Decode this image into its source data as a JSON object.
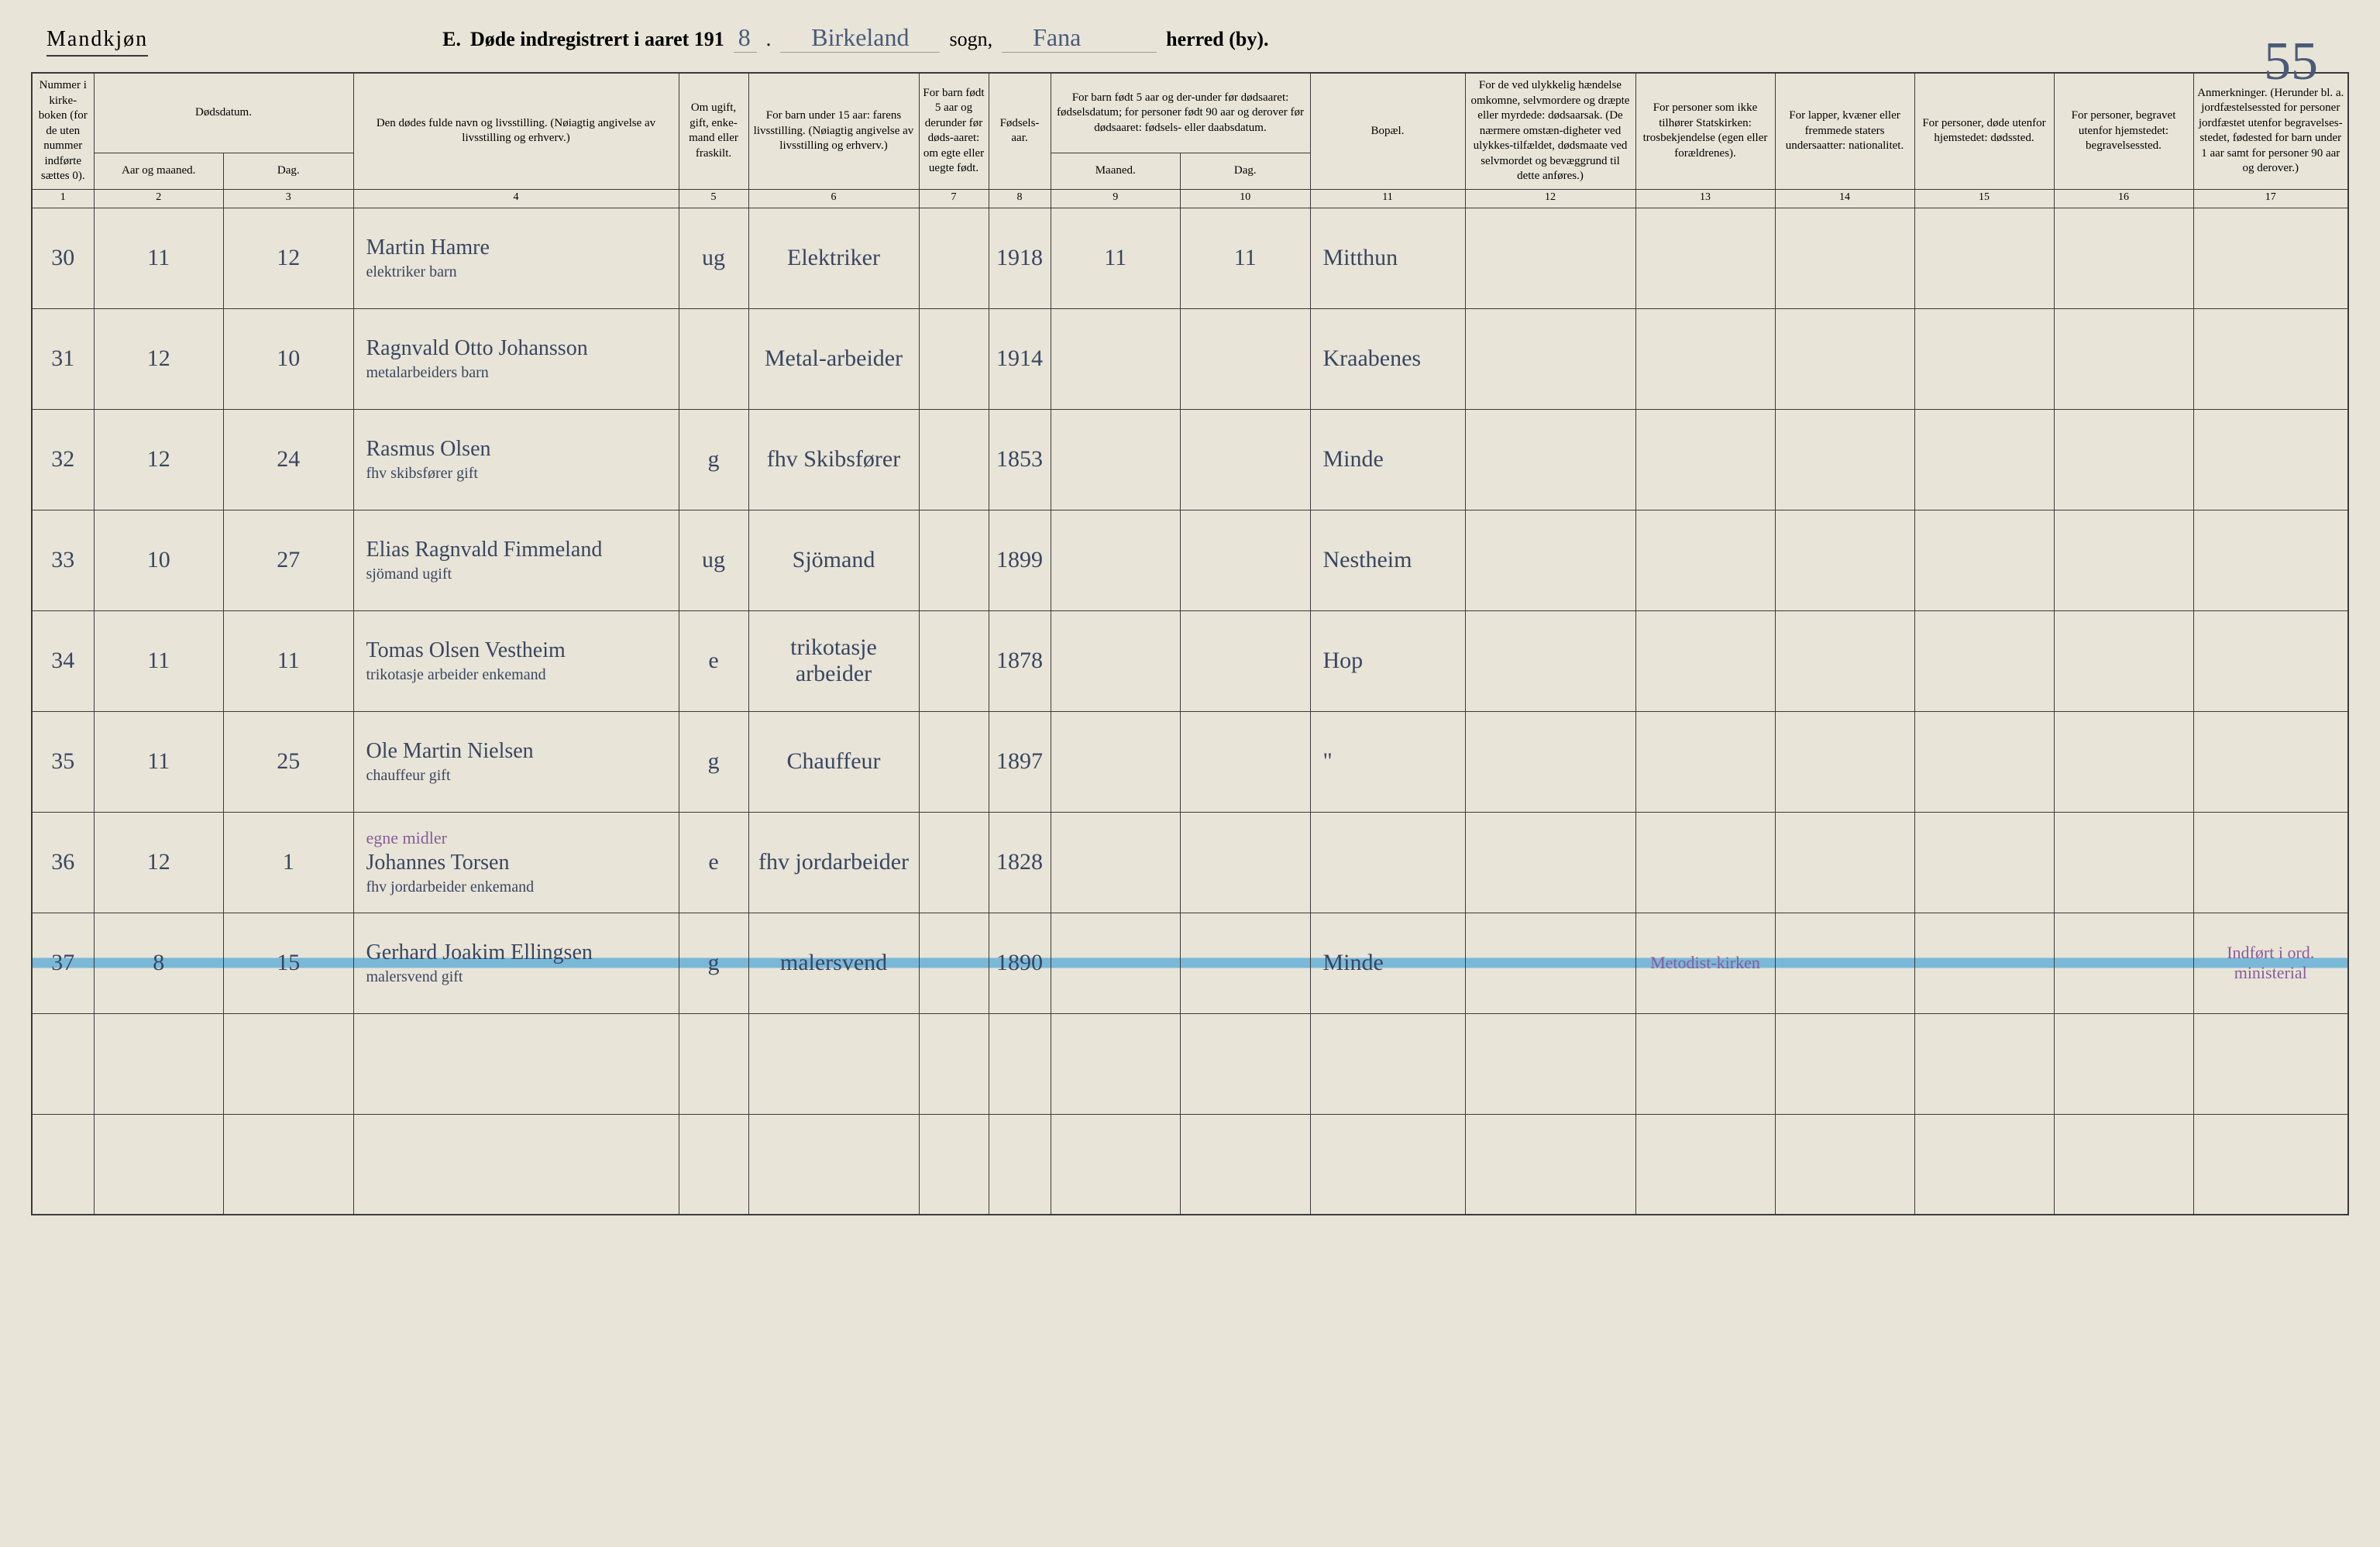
{
  "header": {
    "gender": "Mandkjøn",
    "title_prefix": "E.",
    "title_main": "Døde indregistrert i aaret 191",
    "year_suffix": "8",
    "sogn_value": "Birkeland",
    "sogn_label": "sogn,",
    "herred_value": "Fana",
    "herred_label": "herred (by).",
    "page_number": "55"
  },
  "columns": {
    "c1": "Nummer i kirke-boken (for de uten nummer indførte sættes 0).",
    "c2_3": "Dødsdatum.",
    "c2": "Aar og maaned.",
    "c3": "Dag.",
    "c4": "Den dødes fulde navn og livsstilling. (Nøiagtig angivelse av livsstilling og erhverv.)",
    "c5": "Om ugift, gift, enke-mand eller fraskilt.",
    "c6": "For barn under 15 aar: farens livsstilling. (Nøiagtig angivelse av livsstilling og erhverv.)",
    "c7": "For barn født 5 aar og derunder før døds-aaret: om egte eller uegte født.",
    "c8": "Fødsels-aar.",
    "c9_10": "For barn født 5 aar og der-under før dødsaaret: fødselsdatum; for personer født 90 aar og derover før dødsaaret: fødsels- eller daabsdatum.",
    "c9": "Maaned.",
    "c10": "Dag.",
    "c11": "Bopæl.",
    "c12": "For de ved ulykkelig hændelse omkomne, selvmordere og dræpte eller myrdede: dødsaarsak. (De nærmere omstæn-digheter ved ulykkes-tilfældet, dødsmaate ved selvmordet og bevæggrund til dette anføres.)",
    "c13": "For personer som ikke tilhører Statskirken: trosbekjendelse (egen eller forældrenes).",
    "c14": "For lapper, kvæner eller fremmede staters undersaatter: nationalitet.",
    "c15": "For personer, døde utenfor hjemstedet: dødssted.",
    "c16": "For personer, begravet utenfor hjemstedet: begravelsessted.",
    "c17": "Anmerkninger. (Herunder bl. a. jordfæstelsessted for personer jordfæstet utenfor begravelses-stedet, fødested for barn under 1 aar samt for personer 90 aar og derover.)"
  },
  "colnums": [
    "1",
    "2",
    "3",
    "4",
    "5",
    "6",
    "7",
    "8",
    "9",
    "10",
    "11",
    "12",
    "13",
    "14",
    "15",
    "16",
    "17"
  ],
  "rows": [
    {
      "num": "30",
      "mnd": "11",
      "dag": "12",
      "name": "Martin Hamre",
      "name_sub": "elektriker barn",
      "status": "ug",
      "faren": "Elektriker",
      "egte": "",
      "faar": "1918",
      "fmnd": "11",
      "fdag": "11",
      "bopael": "Mitthun",
      "c12": "",
      "c13": "",
      "c14": "",
      "c15": "",
      "c16": "",
      "c17": "",
      "blue_mark": true
    },
    {
      "num": "31",
      "mnd": "12",
      "dag": "10",
      "name": "Ragnvald Otto Johansson",
      "name_sub": "metalarbeiders barn",
      "status": "",
      "faren": "Metal-arbeider",
      "egte": "",
      "faar": "1914",
      "fmnd": "",
      "fdag": "",
      "bopael": "Kraabenes",
      "c12": "",
      "c13": "",
      "c14": "",
      "c15": "",
      "c16": "",
      "c17": ""
    },
    {
      "num": "32",
      "mnd": "12",
      "dag": "24",
      "name": "Rasmus Olsen",
      "name_sub": "fhv skibsfører gift",
      "status": "g",
      "faren": "fhv Skibsfører",
      "egte": "",
      "faar": "1853",
      "fmnd": "",
      "fdag": "",
      "bopael": "Minde",
      "c12": "",
      "c13": "",
      "c14": "",
      "c15": "",
      "c16": "",
      "c17": ""
    },
    {
      "num": "33",
      "mnd": "10",
      "dag": "27",
      "name": "Elias Ragnvald Fimmeland",
      "name_sub": "sjömand ugift",
      "status": "ug",
      "faren": "Sjömand",
      "egte": "",
      "faar": "1899",
      "fmnd": "",
      "fdag": "",
      "bopael": "Nestheim",
      "c12": "",
      "c13": "",
      "c14": "",
      "c15": "",
      "c16": "",
      "c17": ""
    },
    {
      "num": "34",
      "mnd": "11",
      "dag": "11",
      "name": "Tomas Olsen Vestheim",
      "name_sub": "trikotasje arbeider enkemand",
      "status": "e",
      "faren": "trikotasje arbeider",
      "egte": "",
      "faar": "1878",
      "fmnd": "",
      "fdag": "",
      "bopael": "Hop",
      "c12": "",
      "c13": "",
      "c14": "",
      "c15": "",
      "c16": "",
      "c17": ""
    },
    {
      "num": "35",
      "mnd": "11",
      "dag": "25",
      "name": "Ole Martin Nielsen",
      "name_sub": "chauffeur gift",
      "status": "g",
      "faren": "Chauffeur",
      "egte": "",
      "faar": "1897",
      "fmnd": "",
      "fdag": "",
      "bopael": "\"",
      "c12": "",
      "c13": "",
      "c14": "",
      "c15": "",
      "c16": "",
      "c17": ""
    },
    {
      "num": "36",
      "mnd": "12",
      "dag": "1",
      "name": "Johannes Torsen",
      "name_sub": "fhv jordarbeider enkemand",
      "purple": "egne midler",
      "status": "e",
      "faren": "fhv jordarbeider",
      "egte": "",
      "faar": "1828",
      "fmnd": "",
      "fdag": "",
      "bopael": "",
      "c12": "",
      "c13": "",
      "c14": "",
      "c15": "",
      "c16": "",
      "c17": ""
    },
    {
      "num": "37",
      "mnd": "8",
      "dag": "15",
      "name": "Gerhard Joakim Ellingsen",
      "name_sub": "malersvend gift",
      "status": "g",
      "faren": "malersvend",
      "egte": "",
      "faar": "1890",
      "fmnd": "",
      "fdag": "",
      "bopael": "Minde",
      "c12": "",
      "c13": "Metodist-kirken",
      "c14": "",
      "c15": "",
      "c16": "",
      "c17": "Indført i ord. ministerial",
      "highlight": true
    }
  ],
  "blank_rows": 2
}
